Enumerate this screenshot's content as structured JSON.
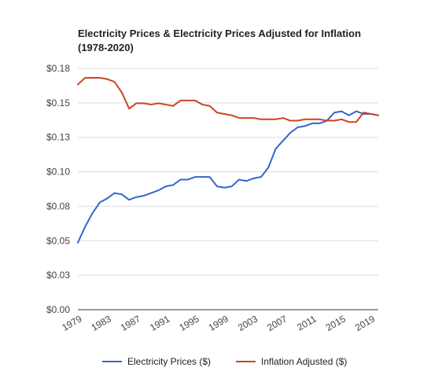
{
  "chart_data": {
    "type": "line",
    "title": "Electricity Prices & Electricity Prices Adjusted for Inflation",
    "subtitle": "(1978-2020)",
    "xlabel": "",
    "ylabel": "",
    "ylim": [
      0,
      0.18
    ],
    "y_ticks": [
      "$0.00",
      "$0.03",
      "$0.05",
      "$0.08",
      "$0.10",
      "$0.13",
      "$0.15",
      "$0.18"
    ],
    "x_ticks": [
      "1979",
      "1983",
      "1987",
      "1991",
      "1995",
      "1999",
      "2003",
      "2007",
      "2011",
      "2015",
      "2019"
    ],
    "x": [
      1979,
      1980,
      1981,
      1982,
      1983,
      1984,
      1985,
      1986,
      1987,
      1988,
      1989,
      1990,
      1991,
      1992,
      1993,
      1994,
      1995,
      1996,
      1997,
      1998,
      1999,
      2000,
      2001,
      2002,
      2003,
      2004,
      2005,
      2006,
      2007,
      2008,
      2009,
      2010,
      2011,
      2012,
      2013,
      2014,
      2015,
      2016,
      2017,
      2018,
      2019,
      2020
    ],
    "grid": true,
    "legend_position": "bottom",
    "series": [
      {
        "name": "Electricity Prices ($)",
        "color": "#3366cc",
        "values": [
          0.05,
          0.062,
          0.072,
          0.08,
          0.083,
          0.087,
          0.086,
          0.082,
          0.084,
          0.085,
          0.087,
          0.089,
          0.092,
          0.093,
          0.097,
          0.097,
          0.099,
          0.099,
          0.099,
          0.092,
          0.091,
          0.092,
          0.097,
          0.096,
          0.098,
          0.099,
          0.106,
          0.12,
          0.126,
          0.132,
          0.136,
          0.137,
          0.139,
          0.139,
          0.141,
          0.147,
          0.148,
          0.145,
          0.148,
          0.146,
          0.146,
          0.145
        ]
      },
      {
        "name": "Inflation Adjusted ($)",
        "color": "#cc4422",
        "values": [
          0.168,
          0.173,
          0.173,
          0.173,
          0.172,
          0.17,
          0.162,
          0.15,
          0.154,
          0.154,
          0.153,
          0.154,
          0.153,
          0.152,
          0.156,
          0.156,
          0.156,
          0.153,
          0.152,
          0.147,
          0.146,
          0.145,
          0.143,
          0.143,
          0.143,
          0.142,
          0.142,
          0.142,
          0.143,
          0.141,
          0.141,
          0.142,
          0.142,
          0.142,
          0.141,
          0.141,
          0.142,
          0.14,
          0.14,
          0.147,
          0.146,
          0.145
        ]
      }
    ]
  }
}
